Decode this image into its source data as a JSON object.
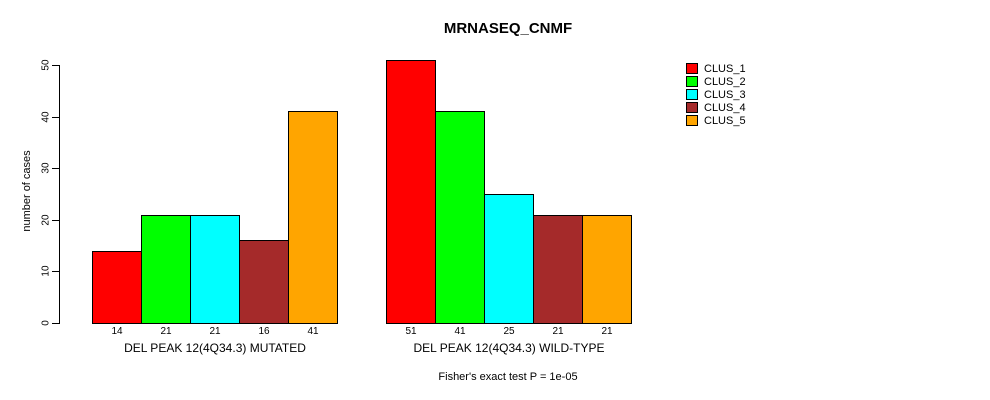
{
  "chart_data": {
    "type": "bar",
    "title": "MRNASEQ_CNMF",
    "ylabel": "number of cases",
    "ylim": [
      0,
      50
    ],
    "yticks": [
      0,
      10,
      20,
      30,
      40,
      50
    ],
    "categories": [
      "DEL PEAK 12(4Q34.3) MUTATED",
      "DEL PEAK 12(4Q34.3) WILD-TYPE"
    ],
    "series": [
      {
        "name": "CLUS_1",
        "color": "#FF0000",
        "values": [
          14,
          51
        ]
      },
      {
        "name": "CLUS_2",
        "color": "#00FF00",
        "values": [
          21,
          41
        ]
      },
      {
        "name": "CLUS_3",
        "color": "#00FFFF",
        "values": [
          21,
          25
        ]
      },
      {
        "name": "CLUS_4",
        "color": "#A52A2A",
        "values": [
          16,
          21
        ]
      },
      {
        "name": "CLUS_5",
        "color": "#FFA500",
        "values": [
          41,
          21
        ]
      }
    ],
    "bar_value_labels": true,
    "annotation": "Fisher's exact test P = 1e-05",
    "legend_position": "right",
    "grid": false,
    "background": "#FFFFFF",
    "axis_color": "#000000"
  }
}
